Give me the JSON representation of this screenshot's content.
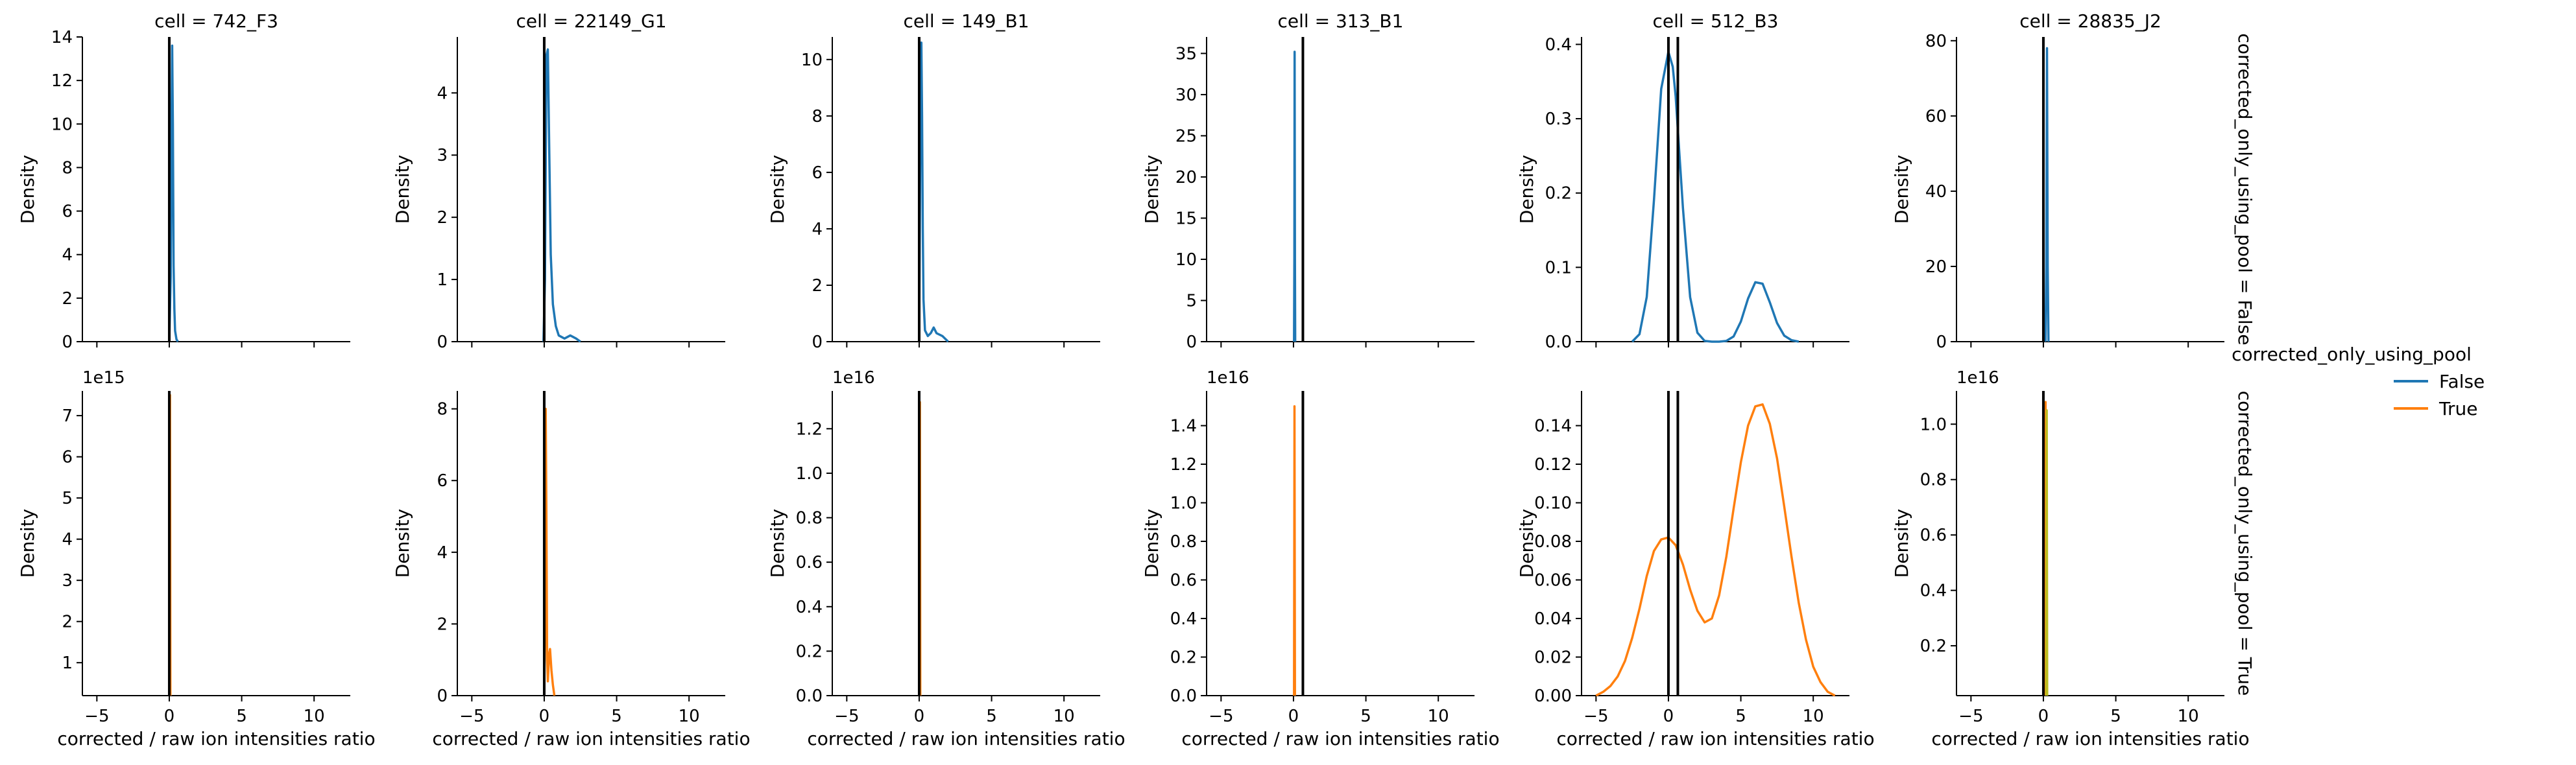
{
  "chart_data": {
    "type": "line",
    "kind": "kde-facet-grid",
    "xlabel": "corrected / raw ion intensities ratio",
    "ylabel": "Density",
    "xlim": [
      -6.0,
      12.5
    ],
    "xticks": [
      -5,
      0,
      5,
      10
    ],
    "columns": [
      "cell = 742_F3",
      "cell = 22149_G1",
      "cell = 149_B1",
      "cell = 313_B1",
      "cell = 512_B3",
      "cell = 28835_J2"
    ],
    "rows": [
      "corrected_only_using_pool = False",
      "corrected_only_using_pool = True"
    ],
    "legend": {
      "title": "corrected_only_using_pool",
      "placement": "right",
      "entries": [
        {
          "label": "False",
          "color": "#1f77b4"
        },
        {
          "label": "True",
          "color": "#ff7f0e"
        }
      ]
    },
    "panels": [
      {
        "row": 0,
        "col": 0,
        "ylim": [
          0,
          14
        ],
        "yticks": [
          0,
          2,
          4,
          6,
          8,
          10,
          12,
          14
        ],
        "offset": "",
        "vlines": [
          0.0
        ],
        "color": "#1f77b4",
        "series": [
          {
            "x": [
              0.0,
              0.1,
              0.15,
              0.2,
              0.25,
              0.3,
              0.35,
              0.4,
              0.5,
              0.6
            ],
            "y": [
              0,
              3,
              9,
              13.6,
              10,
              3.5,
              1.5,
              0.5,
              0.1,
              0
            ]
          }
        ]
      },
      {
        "row": 0,
        "col": 1,
        "ylim": [
          0,
          4.9
        ],
        "yticks": [
          0,
          1,
          2,
          3,
          4
        ],
        "offset": "",
        "vlines": [
          0.0
        ],
        "color": "#1f77b4",
        "series": [
          {
            "x": [
              -0.05,
              0.05,
              0.15,
              0.25,
              0.35,
              0.45,
              0.6,
              0.8,
              1.0,
              1.4,
              1.8,
              2.2,
              2.5
            ],
            "y": [
              0,
              1,
              4.6,
              4.7,
              3.0,
              1.4,
              0.6,
              0.25,
              0.1,
              0.05,
              0.1,
              0.05,
              0
            ]
          }
        ]
      },
      {
        "row": 0,
        "col": 2,
        "ylim": [
          0,
          10.8
        ],
        "yticks": [
          0,
          2,
          4,
          6,
          8,
          10
        ],
        "offset": "",
        "vlines": [
          0.0
        ],
        "color": "#1f77b4",
        "series": [
          {
            "x": [
              0.0,
              0.05,
              0.1,
              0.15,
              0.2,
              0.25,
              0.3,
              0.4,
              0.6,
              0.8,
              1.0,
              1.2,
              1.6,
              2.0
            ],
            "y": [
              0,
              5,
              10.5,
              10.6,
              8,
              4,
              1.5,
              0.4,
              0.2,
              0.3,
              0.5,
              0.3,
              0.2,
              0
            ]
          }
        ]
      },
      {
        "row": 0,
        "col": 3,
        "ylim": [
          0,
          37
        ],
        "yticks": [
          0,
          5,
          10,
          15,
          20,
          25,
          30,
          35
        ],
        "offset": "",
        "vlines": [
          0.65
        ],
        "color": "#1f77b4",
        "series": [
          {
            "x": [
              0.04,
              0.06,
              0.08,
              0.1,
              0.12
            ],
            "y": [
              0,
              10,
              35.2,
              10,
              0
            ]
          }
        ]
      },
      {
        "row": 0,
        "col": 4,
        "ylim": [
          0,
          0.41
        ],
        "yticks": [
          0.0,
          0.1,
          0.2,
          0.3,
          0.4
        ],
        "offset": "",
        "vlines": [
          0.0,
          0.65
        ],
        "color": "#1f77b4",
        "series": [
          {
            "x": [
              -2.5,
              -2.0,
              -1.5,
              -1.0,
              -0.5,
              0.0,
              0.3,
              0.5,
              1.0,
              1.5,
              2.0,
              2.5,
              3.0,
              3.5,
              4.0,
              4.5,
              5.0,
              5.5,
              6.0,
              6.5,
              7.0,
              7.5,
              8.0,
              8.5,
              9.0
            ],
            "y": [
              0.0,
              0.01,
              0.06,
              0.19,
              0.34,
              0.39,
              0.37,
              0.33,
              0.18,
              0.06,
              0.012,
              0.001,
              0.0,
              0.0,
              0.001,
              0.007,
              0.027,
              0.058,
              0.08,
              0.078,
              0.053,
              0.025,
              0.008,
              0.002,
              0.0
            ]
          }
        ]
      },
      {
        "row": 0,
        "col": 5,
        "ylim": [
          0,
          81
        ],
        "yticks": [
          0,
          20,
          40,
          60,
          80
        ],
        "offset": "",
        "vlines": [
          0.0
        ],
        "color": "#1f77b4",
        "series": [
          {
            "x": [
              0.15,
              0.2,
              0.25,
              0.3,
              0.35
            ],
            "y": [
              0,
              20,
              78,
              20,
              0
            ]
          }
        ]
      },
      {
        "row": 1,
        "col": 0,
        "ylim": [
          0.2,
          7.6
        ],
        "yticks": [
          1,
          2,
          3,
          4,
          5,
          6,
          7
        ],
        "offset": "1e15",
        "vlines": [
          0.0
        ],
        "color": "#ff7f0e",
        "series": [
          {
            "x": [
              0.02,
              0.05,
              0.08
            ],
            "y": [
              0.2,
              7.5,
              0.2
            ]
          }
        ]
      },
      {
        "row": 1,
        "col": 1,
        "ylim": [
          0,
          8.5
        ],
        "yticks": [
          0,
          2,
          4,
          6,
          8
        ],
        "offset": "",
        "vlines": [
          0.0
        ],
        "color": "#ff7f0e",
        "series": [
          {
            "x": [
              0.0,
              0.05,
              0.1,
              0.15,
              0.2,
              0.25,
              0.3,
              0.35,
              0.4,
              0.45,
              0.5,
              0.55,
              0.6,
              0.7
            ],
            "y": [
              0,
              2,
              8.0,
              5.0,
              1.0,
              0.4,
              0.8,
              1.2,
              1.3,
              1.0,
              0.7,
              0.5,
              0.3,
              0
            ]
          }
        ]
      },
      {
        "row": 1,
        "col": 2,
        "ylim": [
          0,
          1.37
        ],
        "yticks": [
          0.0,
          0.2,
          0.4,
          0.6,
          0.8,
          1.0,
          1.2
        ],
        "offset": "1e16",
        "vlines": [
          0.0
        ],
        "color": "#ff7f0e",
        "series": [
          {
            "x": [
              0.02,
              0.05,
              0.08
            ],
            "y": [
              0,
              1.32,
              0
            ]
          }
        ]
      },
      {
        "row": 1,
        "col": 3,
        "ylim": [
          0,
          1.58
        ],
        "yticks": [
          0.0,
          0.2,
          0.4,
          0.6,
          0.8,
          1.0,
          1.2,
          1.4
        ],
        "offset": "1e16",
        "vlines": [
          0.65
        ],
        "color": "#ff7f0e",
        "series": [
          {
            "x": [
              0.04,
              0.07,
              0.1
            ],
            "y": [
              0,
              1.5,
              0
            ]
          }
        ]
      },
      {
        "row": 1,
        "col": 4,
        "ylim": [
          0,
          0.158
        ],
        "yticks": [
          0.0,
          0.02,
          0.04,
          0.06,
          0.08,
          0.1,
          0.12,
          0.14
        ],
        "offset": "",
        "vlines": [
          0.0,
          0.65
        ],
        "color": "#ff7f0e",
        "series": [
          {
            "x": [
              -5.0,
              -4.5,
              -4.0,
              -3.5,
              -3.0,
              -2.5,
              -2.0,
              -1.5,
              -1.0,
              -0.5,
              0.0,
              0.5,
              1.0,
              1.5,
              2.0,
              2.5,
              3.0,
              3.5,
              4.0,
              4.5,
              5.0,
              5.5,
              6.0,
              6.5,
              7.0,
              7.5,
              8.0,
              8.5,
              9.0,
              9.5,
              10.0,
              10.5,
              11.0,
              11.5
            ],
            "y": [
              0.0,
              0.002,
              0.005,
              0.01,
              0.018,
              0.03,
              0.045,
              0.062,
              0.075,
              0.081,
              0.082,
              0.078,
              0.068,
              0.055,
              0.044,
              0.038,
              0.04,
              0.052,
              0.072,
              0.097,
              0.121,
              0.14,
              0.15,
              0.151,
              0.141,
              0.123,
              0.098,
              0.072,
              0.048,
              0.029,
              0.015,
              0.007,
              0.002,
              0.0
            ]
          }
        ]
      },
      {
        "row": 1,
        "col": 5,
        "ylim": [
          0.02,
          1.12
        ],
        "yticks": [
          0.2,
          0.4,
          0.6,
          0.8,
          1.0
        ],
        "offset": "1e16",
        "vlines": [
          0.0
        ],
        "color": "#ff7f0e",
        "series": [
          {
            "x": [
              0.12,
              0.15,
              0.18
            ],
            "y": [
              0.02,
              1.08,
              0.02
            ]
          },
          {
            "x": [
              0.2,
              0.23,
              0.26
            ],
            "y": [
              0.02,
              1.05,
              0.02
            ],
            "color": "#bcbd22"
          }
        ]
      }
    ]
  }
}
